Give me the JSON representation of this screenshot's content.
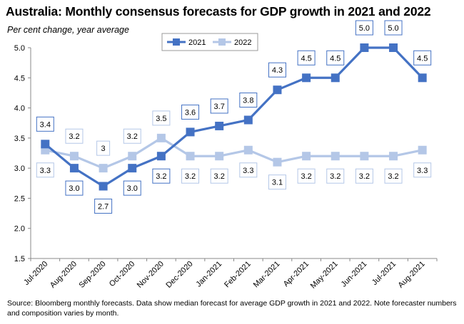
{
  "chart_data": {
    "type": "line",
    "title": "Australia: Monthly consensus forecasts for GDP growth in 2021 and 2022",
    "subtitle": "Per cent change, year average",
    "xlabel": "",
    "ylabel": "",
    "categories": [
      "Jul-2020",
      "Aug-2020",
      "Sep-2020",
      "Oct-2020",
      "Nov-2020",
      "Dec-2020",
      "Jan-2021",
      "Feb-2021",
      "Mar-2021",
      "Apr-2021",
      "May-2021",
      "Jun-2021",
      "Jul-2021",
      "Aug-2021"
    ],
    "ylim": [
      1.5,
      5.0
    ],
    "yticks": [
      1.5,
      2.0,
      2.5,
      3.0,
      3.5,
      4.0,
      4.5,
      5.0
    ],
    "ytick_labels": [
      "1.5",
      "2.0",
      "2.5",
      "3.0",
      "3.5",
      "4.0",
      "4.5",
      "5.0"
    ],
    "grid": false,
    "legend_position": "top-center",
    "series": [
      {
        "name": "2021",
        "color": "#4472C4",
        "values": [
          3.4,
          3.0,
          2.7,
          3.0,
          3.2,
          3.6,
          3.7,
          3.8,
          4.3,
          4.5,
          4.5,
          5.0,
          5.0,
          4.5
        ],
        "labels": [
          "3.4",
          "3.0",
          "2.7",
          "3.0",
          "3.2",
          "3.6",
          "3.7",
          "3.8",
          "4.3",
          "4.5",
          "4.5",
          "5.0",
          "5.0",
          "4.5"
        ],
        "label_positions": [
          "above",
          "below",
          "below",
          "below",
          "below",
          "above",
          "above",
          "above",
          "above",
          "above",
          "above",
          "above",
          "above",
          "above"
        ]
      },
      {
        "name": "2022",
        "color": "#B4C7E7",
        "values": [
          3.3,
          3.2,
          3.0,
          3.2,
          3.5,
          3.2,
          3.2,
          3.3,
          3.1,
          3.2,
          3.2,
          3.2,
          3.2,
          3.3
        ],
        "labels": [
          "3.3",
          "3.2",
          "3",
          "3.2",
          "3.5",
          "3.2",
          "3.2",
          "3.3",
          "3.1",
          "3.2",
          "3.2",
          "3.2",
          "3.2",
          "3.3"
        ],
        "label_positions": [
          "below",
          "above",
          "above",
          "above",
          "above",
          "below",
          "below",
          "below",
          "below",
          "below",
          "below",
          "below",
          "below",
          "below"
        ]
      }
    ],
    "source": "Source: Bloomberg monthly forecasts.  Data show median forecast for average GDP growth in 2021 and 2022.  Note forecaster numbers and composition varies by month."
  }
}
